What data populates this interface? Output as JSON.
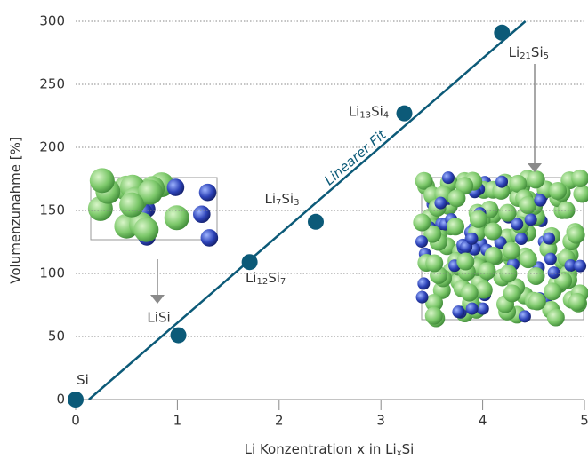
{
  "chart_data": {
    "type": "scatter",
    "xlabel": "Li Konzentration x in LixSi",
    "ylabel": "Volumenzunahme [%]",
    "xlim": [
      0,
      5
    ],
    "ylim": [
      0,
      300
    ],
    "xticks": [
      0,
      1,
      2,
      3,
      4,
      5
    ],
    "yticks": [
      0,
      50,
      100,
      150,
      200,
      250,
      300
    ],
    "grid": true,
    "color": "#0c5a78",
    "labels": [
      "Si",
      "LiSi",
      "Li12Si7",
      "Li7Si3",
      "Li13Si4",
      "Li21Si5"
    ],
    "x": [
      0,
      1.01,
      1.71,
      2.36,
      3.23,
      4.19
    ],
    "values": [
      0,
      51,
      109,
      141,
      227,
      291
    ],
    "fit": {
      "name": "Linearer Fit",
      "color": "#0c5a78",
      "x": [
        0.13,
        4.42
      ],
      "values": [
        0,
        300
      ]
    }
  }
}
